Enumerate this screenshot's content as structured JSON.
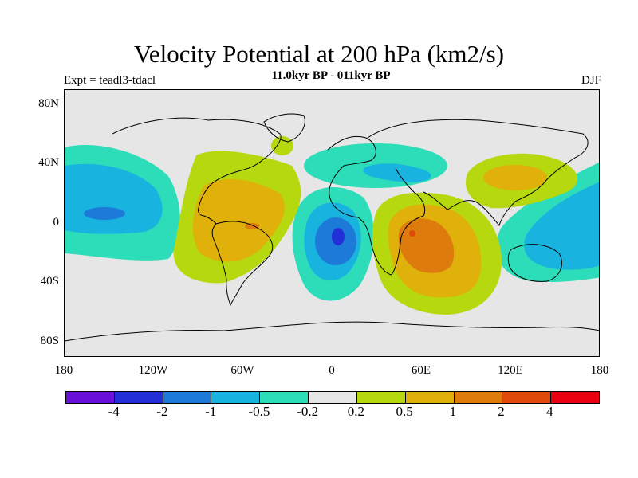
{
  "title": "Velocity Potential at 200 hPa (km2/s)",
  "subtitle": "11.0kyr BP - 011kyr BP",
  "left_label": "Expt = teadl3-tdacl",
  "right_label": "DJF",
  "y_ticks": [
    "80N",
    "40N",
    "0",
    "40S",
    "80S"
  ],
  "x_ticks": [
    "180",
    "120W",
    "60W",
    "0",
    "60E",
    "120E",
    "180"
  ],
  "colorbar": {
    "colors": [
      "#6a0fd8",
      "#2330d8",
      "#1e7ad8",
      "#19b3e0",
      "#2ddcb8",
      "#e6e6e6",
      "#b5d80e",
      "#dfb10a",
      "#dd7c0c",
      "#e04a0a",
      "#e8000e"
    ],
    "labels": [
      "-4",
      "-2",
      "-1",
      "-0.5",
      "-0.2",
      "0.2",
      "0.5",
      "1",
      "2",
      "4"
    ]
  }
}
